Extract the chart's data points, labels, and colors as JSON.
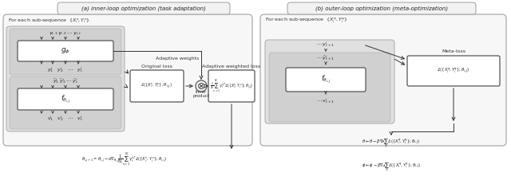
{
  "fig_width": 6.4,
  "fig_height": 2.31,
  "bg_color": "#ffffff",
  "panel_a_title": "(a) inner-loop optimization (task adaptation)",
  "panel_b_title": "(b) outer-loop optimization (meta-optimization)",
  "panel_a_label": "For each sub-sequence  $\\{X_i^s, Y_i^s\\}$",
  "panel_b_label": "For each sub-sequence  $\\{X_i^q, Y_i^q\\}$",
  "g_phi_label": "$g_\\phi$",
  "f_theta_a_label": "$f_{\\theta_{i,J}}$",
  "f_theta_b_label": "$f_{\\theta_{i,J}}$",
  "adaptive_weights_label": "Adaptive weights",
  "original_loss_label": "Original loss",
  "adaptive_weighted_loss_label": "Adaptive weighted loss",
  "meta_loss_label": "Meta-loss",
  "loss_a_formula": "$\\mathcal{L}(\\{X_i^s, Y_i^s\\};\\theta_{i,J})$",
  "loss_b_formula": "$\\mathcal{L}(\\{X_i^q, Y_i^q\\};\\theta_{i,J})$",
  "adaptive_formula": "$\\frac{1}{N_i}\\sum_{s=1}^{N_i}\\gamma_i^{sT}\\mathcal{L}(\\{X_i^s, Y_i^s\\};\\theta_{i,J})$",
  "gamma_row": "$\\gamma_{i,1}\\,\\gamma_{i,2}\\;\\cdots\\;\\gamma_{i,t}$",
  "y_row_a": "$y_1^i\\quad y_2^i\\quad\\cdots\\quad y_t^i$",
  "yhat_row_a": "$\\hat{y}_1^i\\;\\hat{y}_2^i\\;\\cdots\\;\\hat{y}_t^i$",
  "v_row_a": "$v_1^i\\quad v_2^i\\quad\\cdots\\quad v_t^i$",
  "y_row_b_top": "$\\cdots\\;y_{t+1}^i$",
  "yhat_row_b": "$\\cdots\\;\\hat{y}_{t+1}^i$",
  "v_row_b": "$\\cdots\\;v_{t+1}^i$",
  "inner_formula": "$\\theta_{i,j+1} = \\theta_{i,j} - \\alpha\\nabla_{\\theta_{i,j}}\\dfrac{1}{N_i}\\sum_{s=1}^{N_i}\\gamma_i^{sT}\\mathcal{L}(\\{X_i^s, Y_i^s\\};\\theta_{i,j})$",
  "outer_formula1": "$\\theta \\leftarrow \\theta - \\beta\\nabla_\\theta\\sum_{\\mathcal{T}_i}\\mathcal{L}(\\{X_i^q, Y_i^q\\};\\theta_{i,J})$",
  "outer_formula2": "$\\phi \\leftarrow \\phi - \\beta\\nabla_\\phi\\sum_{\\mathcal{T}_i}\\mathcal{L}(\\{X_i^q, Y_i^q\\};\\theta_{i,J})$",
  "inner_product_label": "Inner\nproduct",
  "otimes_symbol": "$\\otimes$"
}
